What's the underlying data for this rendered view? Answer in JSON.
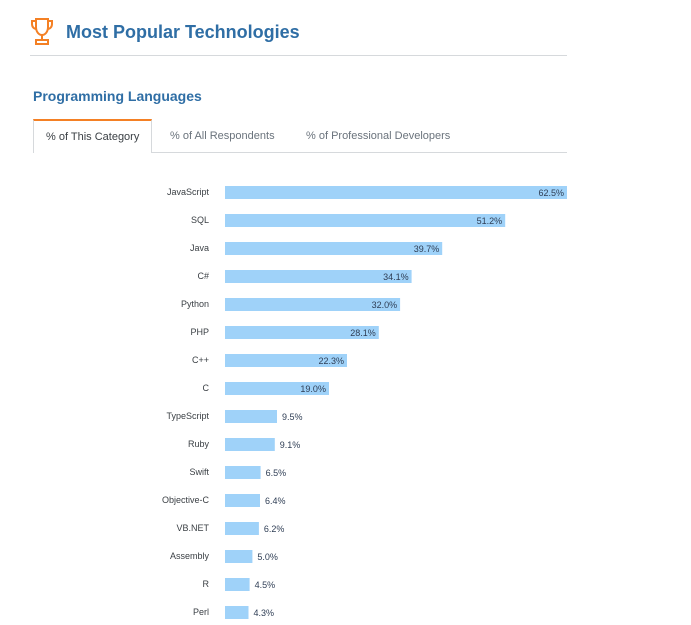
{
  "header": {
    "title": "Most Popular Technologies",
    "icon": "trophy-icon",
    "icon_color": "#f48024"
  },
  "section": {
    "title": "Programming Languages"
  },
  "tabs": [
    {
      "label": "% of This Category",
      "active": true
    },
    {
      "label": "% of All Respondents",
      "active": false
    },
    {
      "label": "% of Professional Developers",
      "active": false
    }
  ],
  "colors": {
    "bar": "#9fd2f9",
    "accent": "#f48024",
    "title": "#2f6ea5"
  },
  "chart_data": {
    "type": "bar",
    "orientation": "horizontal",
    "categories": [
      "JavaScript",
      "SQL",
      "Java",
      "C#",
      "Python",
      "PHP",
      "C++",
      "C",
      "TypeScript",
      "Ruby",
      "Swift",
      "Objective-C",
      "VB.NET",
      "Assembly",
      "R",
      "Perl"
    ],
    "values": [
      62.5,
      51.2,
      39.7,
      34.1,
      32.0,
      28.1,
      22.3,
      19.0,
      9.5,
      9.1,
      6.5,
      6.4,
      6.2,
      5.0,
      4.5,
      4.3
    ],
    "value_labels": [
      "62.5%",
      "51.2%",
      "39.7%",
      "34.1%",
      "32.0%",
      "28.1%",
      "22.3%",
      "19.0%",
      "9.5%",
      "9.1%",
      "6.5%",
      "6.4%",
      "6.2%",
      "5.0%",
      "4.5%",
      "4.3%"
    ],
    "xlim": [
      0,
      62.5
    ],
    "grid": false,
    "title": "",
    "xlabel": "",
    "ylabel": ""
  }
}
